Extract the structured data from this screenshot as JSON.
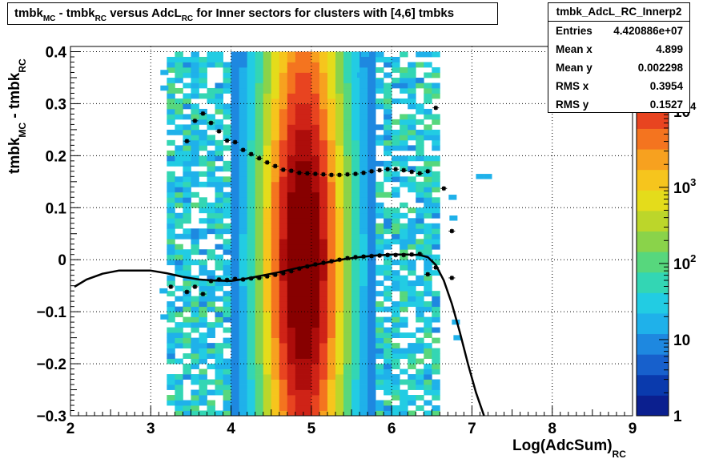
{
  "title": {
    "p1": "tmbk",
    "s1": "MC",
    "p2": " - tmbk",
    "s2": "RC",
    "p3": " versus AdcL",
    "s3": "RC",
    "p4": " for Inner sectors for clusters with [4,6] tmbks"
  },
  "stats": {
    "name": "tmbk_AdcL_RC_Innerp2",
    "rows": [
      {
        "label": "Entries",
        "value": "4.420886e+07"
      },
      {
        "label": "Mean x",
        "value": "4.899"
      },
      {
        "label": "Mean y",
        "value": "0.002298"
      },
      {
        "label": "RMS x",
        "value": "0.3954"
      },
      {
        "label": "RMS y",
        "value": "0.1527"
      }
    ]
  },
  "axis_labels": {
    "x_main": "Log(AdcSum)",
    "x_sub": "RC",
    "y_p1": "tmbk",
    "y_s1": "MC",
    "y_p2": " - tmbk",
    "y_s2": "RC"
  },
  "chart_data": {
    "type": "heatmap",
    "xlim": [
      2,
      9
    ],
    "ylim": [
      -0.3,
      0.41
    ],
    "x_ticks": [
      "2",
      "3",
      "4",
      "5",
      "6",
      "7",
      "8",
      "9"
    ],
    "y_ticks": [
      "-0.3",
      "-0.2",
      "-0.1",
      "0",
      "0.1",
      "0.2",
      "0.3",
      "0.4"
    ],
    "grid": true,
    "z_scale": "log",
    "z_ticks": [
      {
        "label": "1",
        "exp": ""
      },
      {
        "label": "10",
        "exp": ""
      },
      {
        "label": "10",
        "exp": "2"
      },
      {
        "label": "10",
        "exp": "3"
      },
      {
        "label": "10",
        "exp": "4"
      }
    ],
    "palette": [
      "#0b1f8f",
      "#0a3aad",
      "#1760cc",
      "#1e88e0",
      "#1fb1ea",
      "#22cce3",
      "#33d6b4",
      "#57d77d",
      "#8ad34a",
      "#bcd62a",
      "#e4dc1b",
      "#f6c51d",
      "#f7a11f",
      "#f4741f",
      "#e84420",
      "#cf2317",
      "#ad0d0b",
      "#870000"
    ],
    "density_core": {
      "x_center": 4.9,
      "x_sigma": 0.42,
      "x_min": 3.2,
      "x_max": 6.6
    },
    "series": [
      {
        "x": [
          3.45,
          3.55,
          3.65,
          3.75,
          3.85,
          3.95,
          4.05,
          4.15,
          4.25,
          4.35,
          4.45,
          4.55,
          4.65,
          4.75,
          4.85,
          4.95,
          5.05,
          5.15,
          5.25,
          5.35,
          5.45,
          5.55,
          5.65,
          5.75,
          5.85,
          5.95,
          6.05,
          6.15,
          6.25,
          6.35,
          6.45,
          6.55,
          6.65,
          6.75
        ],
        "y": [
          0.228,
          0.267,
          0.281,
          0.263,
          0.247,
          0.229,
          0.226,
          0.211,
          0.203,
          0.195,
          0.187,
          0.18,
          0.173,
          0.171,
          0.167,
          0.166,
          0.165,
          0.164,
          0.163,
          0.163,
          0.164,
          0.165,
          0.167,
          0.17,
          0.172,
          0.174,
          0.174,
          0.172,
          0.169,
          0.166,
          0.17,
          0.292,
          0.137,
          0.055
        ]
      },
      {
        "x": [
          3.25,
          3.45,
          3.55,
          3.65,
          3.75,
          3.85,
          3.95,
          4.05,
          4.15,
          4.25,
          4.35,
          4.45,
          4.55,
          4.65,
          4.75,
          4.85,
          4.95,
          5.05,
          5.15,
          5.25,
          5.35,
          5.45,
          5.55,
          5.65,
          5.75,
          5.85,
          5.95,
          6.05,
          6.15,
          6.25,
          6.35,
          6.45,
          6.55,
          6.75
        ],
        "y": [
          -0.052,
          -0.062,
          -0.052,
          -0.066,
          -0.041,
          -0.038,
          -0.039,
          -0.037,
          -0.038,
          -0.036,
          -0.035,
          -0.032,
          -0.029,
          -0.026,
          -0.022,
          -0.017,
          -0.013,
          -0.009,
          -0.006,
          -0.003,
          0.0,
          0.003,
          0.005,
          0.006,
          0.007,
          0.008,
          0.009,
          0.009,
          0.009,
          0.01,
          0.011,
          -0.028,
          -0.015,
          -0.035
        ]
      },
      {
        "x": [
          2.05,
          2.2,
          2.4,
          2.6,
          2.8,
          3.0,
          3.2,
          3.4,
          3.6,
          3.8,
          4.0,
          4.2,
          4.4,
          4.6,
          4.8,
          5.0,
          5.2,
          5.4,
          5.6,
          5.8,
          6.0,
          6.2,
          6.35,
          6.45,
          6.55,
          6.65,
          6.75,
          6.85,
          6.95,
          7.05,
          7.15
        ],
        "y": [
          -0.052,
          -0.038,
          -0.027,
          -0.021,
          -0.021,
          -0.021,
          -0.026,
          -0.033,
          -0.038,
          -0.04,
          -0.041,
          -0.036,
          -0.03,
          -0.024,
          -0.017,
          -0.011,
          -0.005,
          0.001,
          0.005,
          0.008,
          0.01,
          0.01,
          0.009,
          0.005,
          -0.01,
          -0.04,
          -0.085,
          -0.14,
          -0.2,
          -0.255,
          -0.3
        ]
      }
    ],
    "outliers": [
      {
        "x": 5.62,
        "y": 0.355
      },
      {
        "x": 5.67,
        "y": 0.395
      },
      {
        "x": 5.85,
        "y": 0.342
      },
      {
        "x": 7.1,
        "y": 0.16
      },
      {
        "x": 7.2,
        "y": 0.16
      },
      {
        "x": 6.8,
        "y": -0.12
      },
      {
        "x": 6.82,
        "y": -0.15
      },
      {
        "x": 6.76,
        "y": 0.12
      },
      {
        "x": 6.77,
        "y": 0.08
      },
      {
        "x": 3.17,
        "y": 0.36
      },
      {
        "x": 3.17,
        "y": 0.33
      },
      {
        "x": 3.16,
        "y": -0.06
      },
      {
        "x": 3.17,
        "y": -0.11
      }
    ]
  }
}
